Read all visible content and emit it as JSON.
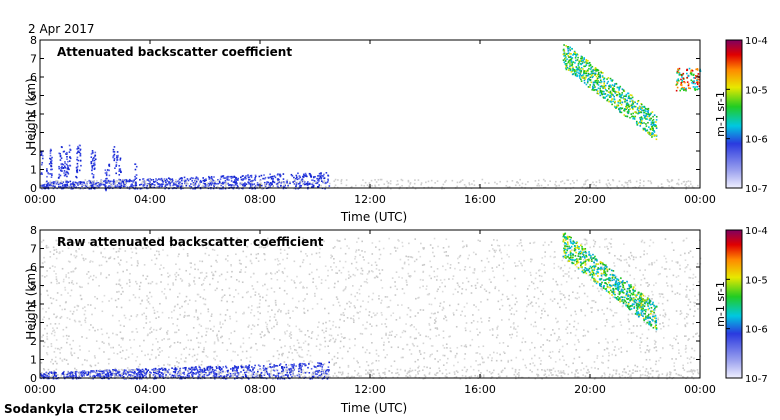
{
  "date": "2 Apr 2017",
  "instrument": "Sodankyla CT25K ceilometer",
  "chart_data": [
    {
      "type": "heatmap",
      "title": "Attenuated backscatter coefficient",
      "xlabel": "Time (UTC)",
      "ylabel": "Height (km)",
      "xlim": [
        0,
        24
      ],
      "ylim": [
        0,
        8
      ],
      "xticks": [
        "00:00",
        "04:00",
        "08:00",
        "12:00",
        "16:00",
        "20:00",
        "00:00"
      ],
      "yticks": [
        "0",
        "1",
        "2",
        "3",
        "4",
        "5",
        "6",
        "7",
        "8"
      ],
      "colorbar": {
        "scale": "log",
        "range": [
          1e-07,
          0.0001
        ],
        "ticks": [
          "10-7",
          "10-6",
          "10-5",
          "10-4"
        ],
        "label": "m-1 sr-1"
      },
      "features": [
        {
          "kind": "boundary-layer",
          "time_start": 0,
          "time_end": 10.5,
          "height_top_start": 0.35,
          "height_top_end": 0.9,
          "level": "1e-6"
        },
        {
          "kind": "low-cloud-streaks",
          "time_start": 0,
          "time_end": 3.5,
          "height_top": 2.5,
          "level": "1e-6"
        },
        {
          "kind": "high-cloud-descending",
          "time_start": 19.0,
          "time_end": 22.4,
          "height_start": 7.0,
          "height_end": 3.0,
          "level": "1e-5"
        },
        {
          "kind": "cloud-patch",
          "time_start": 23.1,
          "time_end": 24.0,
          "height_top": 6.5,
          "height_bottom": 5.3,
          "level": "1e-5"
        }
      ]
    },
    {
      "type": "heatmap",
      "title": "Raw attenuated backscatter coefficient",
      "xlabel": "Time (UTC)",
      "ylabel": "Height (km)",
      "xlim": [
        0,
        24
      ],
      "ylim": [
        0,
        8
      ],
      "xticks": [
        "00:00",
        "04:00",
        "08:00",
        "12:00",
        "16:00",
        "20:00",
        "00:00"
      ],
      "yticks": [
        "0",
        "1",
        "2",
        "3",
        "4",
        "5",
        "6",
        "7",
        "8"
      ],
      "colorbar": {
        "scale": "log",
        "range": [
          1e-07,
          0.0001
        ],
        "ticks": [
          "10-7",
          "10-6",
          "10-5",
          "10-4"
        ],
        "label": "m-1 sr-1"
      },
      "features": [
        {
          "kind": "noise-field",
          "time_start": 0,
          "time_end": 24,
          "height_top": 7.6,
          "level": "1e-7"
        },
        {
          "kind": "boundary-layer",
          "time_start": 0,
          "time_end": 10.5,
          "height_top_start": 0.35,
          "height_top_end": 0.9,
          "level": "1e-6"
        },
        {
          "kind": "high-cloud-descending",
          "time_start": 19.0,
          "time_end": 22.4,
          "height_start": 7.0,
          "height_end": 3.0,
          "level": "1e-5"
        }
      ]
    }
  ]
}
